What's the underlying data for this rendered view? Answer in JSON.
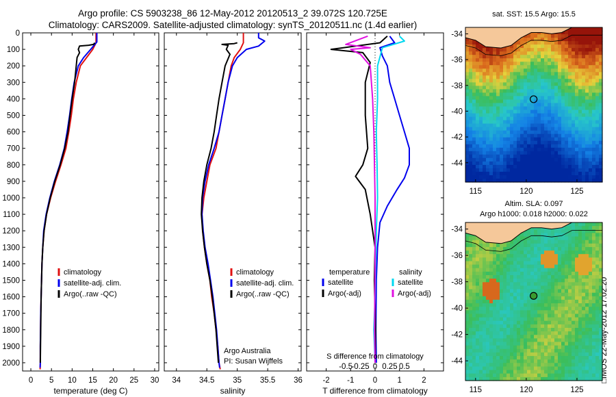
{
  "header": {
    "line1": "Argo profile: CS 5903238_86 12-May-2012 20120513_2 39.072S 120.725E",
    "line2": "Climatology: CARS2009. Satellite-adjusted climatology: synTS_20120511.nc (1.4d earlier)"
  },
  "side_label": "□IMOS 22-May-2012 17:02:20",
  "colors": {
    "red": "#e01010",
    "blue": "#0000ee",
    "black": "#000000",
    "cyan": "#00d8f0",
    "magenta": "#e010e0"
  },
  "chart_data": [
    {
      "id": "temperature",
      "type": "line",
      "xlabel": "temperature (deg C)",
      "xlim": [
        -2,
        31
      ],
      "ylim": [
        0,
        2050
      ],
      "xticks": [
        "0",
        "5",
        "10",
        "15",
        "20",
        "25",
        "30"
      ],
      "yticks": [
        "0",
        "100",
        "200",
        "300",
        "400",
        "500",
        "600",
        "700",
        "800",
        "900",
        "1000",
        "1100",
        "1200",
        "1300",
        "1400",
        "1500",
        "1600",
        "1700",
        "1800",
        "1900",
        "2000"
      ],
      "legend": [
        "climatology",
        "satellite-adj. clim.",
        "Argo(..raw -QC)"
      ],
      "series": [
        {
          "name": "climatology",
          "color": "red",
          "points": [
            [
              15.8,
              0
            ],
            [
              15.8,
              60
            ],
            [
              15.0,
              100
            ],
            [
              13.5,
              150
            ],
            [
              12.0,
              200
            ],
            [
              11.0,
              300
            ],
            [
              10.3,
              400
            ],
            [
              9.8,
              500
            ],
            [
              9.2,
              600
            ],
            [
              8.5,
              700
            ],
            [
              7.3,
              800
            ],
            [
              6.0,
              900
            ],
            [
              4.8,
              1000
            ],
            [
              3.8,
              1100
            ],
            [
              3.2,
              1200
            ],
            [
              2.9,
              1300
            ],
            [
              2.7,
              1400
            ],
            [
              2.6,
              1500
            ],
            [
              2.5,
              1600
            ],
            [
              2.4,
              1700
            ],
            [
              2.35,
              1800
            ],
            [
              2.3,
              1900
            ],
            [
              2.3,
              2000
            ],
            [
              2.25,
              2040
            ]
          ]
        },
        {
          "name": "satellite-adj. clim.",
          "color": "blue",
          "points": [
            [
              16.0,
              0
            ],
            [
              16.0,
              55
            ],
            [
              14.5,
              100
            ],
            [
              12.8,
              150
            ],
            [
              11.5,
              200
            ],
            [
              10.5,
              300
            ],
            [
              9.9,
              400
            ],
            [
              9.4,
              500
            ],
            [
              8.8,
              600
            ],
            [
              8.1,
              700
            ],
            [
              7.0,
              800
            ],
            [
              5.7,
              900
            ],
            [
              4.6,
              1000
            ],
            [
              3.7,
              1100
            ],
            [
              3.1,
              1200
            ],
            [
              2.9,
              1300
            ],
            [
              2.7,
              1400
            ],
            [
              2.6,
              1500
            ],
            [
              2.5,
              1600
            ],
            [
              2.4,
              1700
            ],
            [
              2.35,
              1800
            ],
            [
              2.3,
              1900
            ],
            [
              2.3,
              2000
            ],
            [
              2.25,
              2030
            ]
          ]
        },
        {
          "name": "Argo(..raw -QC)",
          "color": "black",
          "points": [
            [
              15.5,
              60
            ],
            [
              15.2,
              70
            ],
            [
              14.0,
              75
            ],
            [
              11.8,
              80
            ],
            [
              11.5,
              100
            ],
            [
              11.8,
              120
            ],
            [
              11.2,
              150
            ],
            [
              11.0,
              200
            ],
            [
              10.6,
              300
            ],
            [
              10.0,
              400
            ],
            [
              9.5,
              500
            ],
            [
              9.0,
              600
            ],
            [
              8.2,
              700
            ],
            [
              7.1,
              800
            ],
            [
              5.8,
              900
            ],
            [
              4.7,
              1000
            ],
            [
              3.8,
              1100
            ],
            [
              3.2,
              1200
            ],
            [
              2.9,
              1300
            ],
            [
              2.7,
              1400
            ],
            [
              2.6,
              1500
            ],
            [
              2.5,
              1600
            ],
            [
              2.45,
              1700
            ],
            [
              2.4,
              1800
            ],
            [
              2.35,
              1900
            ],
            [
              2.3,
              2000
            ]
          ]
        }
      ]
    },
    {
      "id": "salinity",
      "type": "line",
      "xlabel": "salinity",
      "xlim": [
        33.8,
        36.05
      ],
      "ylim": [
        0,
        2050
      ],
      "xticks": [
        "34",
        "34.5",
        "35",
        "35.5",
        "36"
      ],
      "legend": [
        "climatology",
        "satellite-adj. clim.",
        "Argo(..raw -QC)"
      ],
      "annotation": [
        "Argo Australia",
        "PI: Susan Wijffels"
      ],
      "series": [
        {
          "name": "climatology",
          "color": "red",
          "points": [
            [
              35.1,
              0
            ],
            [
              35.1,
              60
            ],
            [
              35.05,
              100
            ],
            [
              34.95,
              150
            ],
            [
              34.9,
              200
            ],
            [
              34.85,
              300
            ],
            [
              34.8,
              400
            ],
            [
              34.75,
              500
            ],
            [
              34.7,
              600
            ],
            [
              34.65,
              700
            ],
            [
              34.55,
              800
            ],
            [
              34.5,
              900
            ],
            [
              34.45,
              1000
            ],
            [
              34.42,
              1100
            ],
            [
              34.43,
              1200
            ],
            [
              34.46,
              1300
            ],
            [
              34.5,
              1400
            ],
            [
              34.55,
              1500
            ],
            [
              34.58,
              1600
            ],
            [
              34.62,
              1700
            ],
            [
              34.65,
              1800
            ],
            [
              34.68,
              1900
            ],
            [
              34.7,
              2000
            ],
            [
              34.72,
              2040
            ]
          ]
        },
        {
          "name": "satellite-adj. clim.",
          "color": "blue",
          "points": [
            [
              35.35,
              0
            ],
            [
              35.35,
              30
            ],
            [
              35.45,
              50
            ],
            [
              35.35,
              80
            ],
            [
              35.15,
              100
            ],
            [
              35.0,
              150
            ],
            [
              34.92,
              200
            ],
            [
              34.85,
              300
            ],
            [
              34.8,
              400
            ],
            [
              34.75,
              500
            ],
            [
              34.7,
              600
            ],
            [
              34.62,
              700
            ],
            [
              34.53,
              800
            ],
            [
              34.47,
              900
            ],
            [
              34.43,
              1000
            ],
            [
              34.42,
              1100
            ],
            [
              34.44,
              1200
            ],
            [
              34.47,
              1300
            ],
            [
              34.52,
              1400
            ],
            [
              34.56,
              1500
            ],
            [
              34.6,
              1600
            ],
            [
              34.63,
              1700
            ],
            [
              34.66,
              1800
            ],
            [
              34.68,
              1900
            ],
            [
              34.7,
              2000
            ],
            [
              34.71,
              2030
            ]
          ]
        },
        {
          "name": "Argo(..raw -QC)",
          "color": "black",
          "points": [
            [
              35.0,
              60
            ],
            [
              34.95,
              65
            ],
            [
              34.75,
              70
            ],
            [
              34.85,
              75
            ],
            [
              34.82,
              100
            ],
            [
              34.88,
              130
            ],
            [
              34.8,
              200
            ],
            [
              34.75,
              300
            ],
            [
              34.7,
              400
            ],
            [
              34.66,
              500
            ],
            [
              34.62,
              600
            ],
            [
              34.57,
              700
            ],
            [
              34.5,
              800
            ],
            [
              34.45,
              900
            ],
            [
              34.42,
              1000
            ],
            [
              34.41,
              1100
            ],
            [
              34.43,
              1200
            ],
            [
              34.46,
              1300
            ],
            [
              34.5,
              1400
            ],
            [
              34.55,
              1500
            ],
            [
              34.59,
              1600
            ],
            [
              34.62,
              1700
            ],
            [
              34.65,
              1800
            ],
            [
              34.67,
              1900
            ],
            [
              34.69,
              2000
            ]
          ]
        }
      ]
    },
    {
      "id": "difference",
      "type": "line",
      "xlabel": "T difference from climatology",
      "top_axis_label": "S difference from climatology",
      "xlim": [
        -2.8,
        2.8
      ],
      "ylim": [
        0,
        2050
      ],
      "xticks": [
        "-2",
        "-1",
        "0",
        "1",
        "2"
      ],
      "s_xticks": [
        "-0.5",
        "-0.25",
        "0",
        "0.25",
        "0.5"
      ],
      "legend_titles": [
        "temperature",
        "salinity"
      ],
      "legend": [
        "satellite",
        "Argo(-adj)",
        "satellite",
        "Argo(-adj)"
      ],
      "series": [
        {
          "name": "satellite",
          "color": "blue",
          "points": [
            [
              0.6,
              20
            ],
            [
              0.8,
              60
            ],
            [
              0.2,
              90
            ],
            [
              0.3,
              140
            ],
            [
              0.5,
              200
            ],
            [
              0.6,
              300
            ],
            [
              0.8,
              400
            ],
            [
              1.0,
              500
            ],
            [
              1.2,
              600
            ],
            [
              1.4,
              700
            ],
            [
              1.4,
              800
            ],
            [
              1.2,
              880
            ],
            [
              0.9,
              950
            ],
            [
              0.5,
              1050
            ],
            [
              0.2,
              1150
            ],
            [
              0.1,
              1300
            ],
            [
              0.05,
              1500
            ],
            [
              0.03,
              1800
            ],
            [
              0.05,
              2000
            ]
          ]
        },
        {
          "name": "Argo(-adj)",
          "color": "black",
          "points": [
            [
              0.5,
              20
            ],
            [
              0.2,
              60
            ],
            [
              -1.8,
              100
            ],
            [
              -0.5,
              120
            ],
            [
              -0.2,
              180
            ],
            [
              -0.4,
              300
            ],
            [
              -0.4,
              500
            ],
            [
              -0.3,
              700
            ],
            [
              -0.5,
              800
            ],
            [
              -0.8,
              870
            ],
            [
              -0.4,
              950
            ],
            [
              -0.2,
              1100
            ],
            [
              0.0,
              1300
            ],
            [
              -0.03,
              1500
            ],
            [
              0.02,
              1800
            ],
            [
              0.0,
              2000
            ]
          ]
        },
        {
          "name": "satellite",
          "color": "cyan",
          "points": [
            [
              1.0,
              20
            ],
            [
              1.2,
              50
            ],
            [
              0.3,
              90
            ],
            [
              0.1,
              200
            ],
            [
              0.1,
              400
            ],
            [
              0.05,
              600
            ],
            [
              0.08,
              800
            ],
            [
              0.1,
              1000
            ],
            [
              0.05,
              1200
            ],
            [
              0.02,
              1400
            ],
            [
              0.0,
              1600
            ],
            [
              -0.05,
              1800
            ],
            [
              0.0,
              2000
            ]
          ]
        },
        {
          "name": "Argo(-adj)",
          "color": "magenta",
          "points": [
            [
              -0.3,
              20
            ],
            [
              -1.2,
              70
            ],
            [
              -0.2,
              90
            ],
            [
              -1.0,
              100
            ],
            [
              -0.6,
              130
            ],
            [
              -0.2,
              200
            ],
            [
              -0.1,
              400
            ],
            [
              -0.05,
              600
            ],
            [
              0.0,
              1000
            ],
            [
              0.0,
              1400
            ],
            [
              -0.02,
              1800
            ],
            [
              0.0,
              2000
            ]
          ]
        }
      ]
    },
    {
      "id": "sst_map",
      "type": "heatmap",
      "title": "sat. SST: 15.5 Argo: 15.5",
      "xlim": [
        114,
        127.5
      ],
      "ylim": [
        -45.5,
        -33.5
      ],
      "xticks": [
        "115",
        "120",
        "125"
      ],
      "yticks": [
        "-34",
        "-36",
        "-38",
        "-40",
        "-42",
        "-44"
      ],
      "marker": [
        120.725,
        -39.072
      ]
    },
    {
      "id": "sla_map",
      "type": "heatmap",
      "title": "Altim. SLA: 0.097",
      "subtitle": "Argo h1000: 0.018 h2000: 0.022",
      "xlim": [
        114,
        127.5
      ],
      "ylim": [
        -45.5,
        -33.5
      ],
      "xticks": [
        "115",
        "120",
        "125"
      ],
      "yticks": [
        "-34",
        "-36",
        "-38",
        "-40",
        "-42",
        "-44"
      ],
      "marker": [
        120.725,
        -39.072
      ]
    }
  ]
}
